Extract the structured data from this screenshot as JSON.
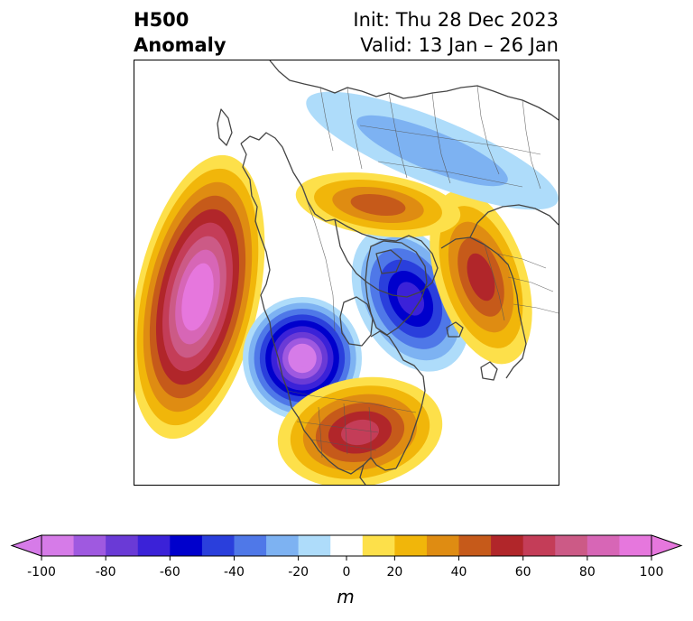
{
  "header": {
    "title_line1": "H500",
    "title_line2": "Anomaly",
    "init_text": "Init: Thu 28 Dec 2023",
    "valid_text": "Valid: 13 Jan – 26 Jan"
  },
  "colorbar": {
    "unit": "m",
    "levels": [
      -100,
      -90,
      -80,
      -70,
      -60,
      -50,
      -40,
      -30,
      -20,
      -10,
      10,
      20,
      30,
      40,
      50,
      60,
      70,
      80,
      90,
      100
    ],
    "tick_values": [
      -100,
      -80,
      -60,
      -40,
      -20,
      0,
      20,
      40,
      60,
      80,
      100
    ],
    "tick_labels": [
      "-100",
      "-80",
      "-60",
      "-40",
      "-20",
      "0",
      "20",
      "40",
      "60",
      "80",
      "100"
    ],
    "colors": [
      "#d67be8",
      "#9f59e0",
      "#6a3ad6",
      "#3b22d8",
      "#0000cc",
      "#2a3fdc",
      "#4f78e8",
      "#7db2f2",
      "#aedcfa",
      "#ffffff",
      "#fde04a",
      "#f1b60a",
      "#df8c12",
      "#c65a1a",
      "#b1262a",
      "#c43d58",
      "#cc5a86",
      "#d766b6",
      "#e677dd"
    ],
    "extend_low_color": "#d67be8",
    "extend_high_color": "#e677dd"
  },
  "map": {
    "projection": "north-polar-stereographic",
    "anomalies": [
      {
        "name": "west-pacific-ridge",
        "peak": 100
      },
      {
        "name": "northeast-pacific-trough",
        "peak": -100
      },
      {
        "name": "eastern-us-ridge",
        "peak": 60
      },
      {
        "name": "greenland-trough",
        "peak": -60
      },
      {
        "name": "scandinavia-ridge",
        "peak": 50
      },
      {
        "name": "arctic-siberia-ridge",
        "peak": 40
      },
      {
        "name": "eurasia-trough",
        "peak": -20
      }
    ]
  }
}
